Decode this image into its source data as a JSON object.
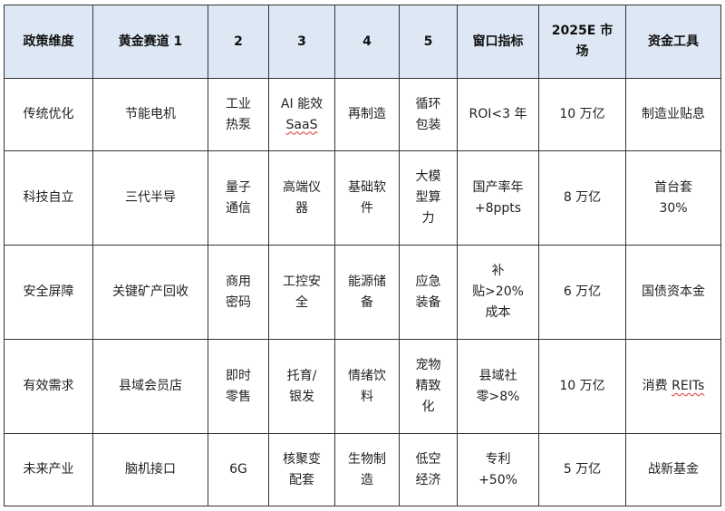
{
  "headers": [
    "政策维度",
    "黄金赛道 1",
    "2",
    "3",
    "4",
    "5",
    "窗口指标",
    "2025E 市\n场",
    "资金工具"
  ],
  "rows": [
    [
      "传统优化",
      "节能电机",
      "工业\n热泵",
      "AI 能效\nSaaS",
      "再制造",
      "循环\n包装",
      "ROI<3 年",
      "10 万亿",
      "制造业贴息"
    ],
    [
      "科技自立",
      "三代半导",
      "量子\n通信",
      "高端仪\n器",
      "基础软\n件",
      "大模\n型算\n力",
      "国产率年\n+8ppts",
      "8 万亿",
      "首台套\n30%"
    ],
    [
      "安全屏障",
      "关键矿产回收",
      "商用\n密码",
      "工控安\n全",
      "能源储\n备",
      "应急\n装备",
      "补\n贴>20%\n成本",
      "6 万亿",
      "国债资本金"
    ],
    [
      "有效需求",
      "县域会员店",
      "即时\n零售",
      "托育/\n银发",
      "情绪饮\n料",
      "宠物\n精致\n化",
      "县域社\n零>8%",
      "10 万亿",
      "消费 REITs"
    ],
    [
      "未来产业",
      "脑机接口",
      "6G",
      "核聚变\n配套",
      "生物制\n造",
      "低空\n经济",
      "专利\n+50%",
      "5 万亿",
      "战新基金"
    ]
  ],
  "colors": {
    "header_bg": "#dde8f4",
    "border": "#333333",
    "spellcheck": "#dd3333"
  }
}
